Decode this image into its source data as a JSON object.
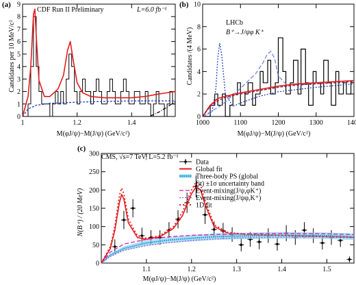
{
  "chart_data": [
    {
      "panel": "(a)",
      "type": "line",
      "annotation_left": "CDF Run II Preliminary",
      "annotation_right": "L=6.0 fb⁻¹",
      "xlabel": "M(φJ/ψ)−M(J/ψ) (GeV/c²)",
      "ylabel": "Candidates per 10 MeV/c²",
      "xlim": [
        1.0,
        1.56
      ],
      "ylim": [
        0,
        9
      ],
      "x_ticks": [
        "1",
        "1.2",
        "1.4"
      ],
      "x_tick_values": [
        1.0,
        1.2,
        1.4
      ],
      "y_ticks": [
        "0",
        "1",
        "2",
        "3",
        "4",
        "5",
        "6",
        "7",
        "8",
        "9"
      ],
      "series": [
        {
          "kind": "histogram",
          "color": "#000000",
          "edges": [
            1.0,
            1.01,
            1.02,
            1.03,
            1.04,
            1.05,
            1.06,
            1.07,
            1.08,
            1.09,
            1.1,
            1.11,
            1.12,
            1.13,
            1.14,
            1.15,
            1.16,
            1.17,
            1.18,
            1.19,
            1.2,
            1.21,
            1.22,
            1.23,
            1.24,
            1.25,
            1.26,
            1.27,
            1.28,
            1.29,
            1.3,
            1.31,
            1.32,
            1.33,
            1.34,
            1.35,
            1.36,
            1.37,
            1.38,
            1.39,
            1.4,
            1.41,
            1.42,
            1.43,
            1.44,
            1.45,
            1.46,
            1.47,
            1.48,
            1.49,
            1.5,
            1.51,
            1.52,
            1.53,
            1.54,
            1.55,
            1.56
          ],
          "values": [
            0,
            0,
            1,
            4,
            8,
            4,
            2,
            1,
            1,
            1,
            0,
            1,
            2,
            1,
            2,
            1,
            3,
            5,
            4,
            2,
            1,
            2,
            3,
            2,
            2,
            1,
            2,
            3,
            2,
            1,
            1,
            2,
            3,
            2,
            1,
            1,
            2,
            3,
            2,
            1,
            1,
            2,
            2,
            1,
            1,
            2,
            1,
            0,
            1,
            2,
            1,
            1,
            0,
            1,
            2,
            1
          ]
        },
        {
          "kind": "fit",
          "color": "#e41a1c",
          "x": [
            1.0,
            1.02,
            1.03,
            1.04,
            1.045,
            1.05,
            1.06,
            1.08,
            1.1,
            1.13,
            1.15,
            1.165,
            1.175,
            1.185,
            1.2,
            1.22,
            1.25,
            1.3,
            1.35,
            1.4,
            1.45,
            1.5,
            1.53,
            1.56
          ],
          "y": [
            0.0,
            1.6,
            4.0,
            8.2,
            8.6,
            6.5,
            2.9,
            1.6,
            1.6,
            2.2,
            3.3,
            5.3,
            6.0,
            4.6,
            2.7,
            1.9,
            1.6,
            1.5,
            1.5,
            1.5,
            1.6,
            1.8,
            1.9,
            2.0
          ]
        },
        {
          "kind": "background",
          "color": "#1f3fbf",
          "dash": "3,2",
          "x": [
            1.0,
            1.02,
            1.05,
            1.1,
            1.15,
            1.2,
            1.3,
            1.4,
            1.5,
            1.56
          ],
          "y": [
            0.0,
            0.6,
            0.9,
            1.05,
            1.1,
            1.15,
            1.2,
            1.25,
            1.25,
            1.25
          ]
        },
        {
          "kind": "other",
          "color": "#000000",
          "dash": "5,2,1,2",
          "x": [
            1.47,
            1.5,
            1.53,
            1.56
          ],
          "y": [
            0.05,
            0.35,
            0.75,
            1.2
          ]
        }
      ]
    },
    {
      "panel": "(b)",
      "type": "line",
      "annotation_line1": "LHCb",
      "annotation_line2": "B⁺→J/ψφ K⁺",
      "xlabel": "M(φJ/ψ)−M(J/ψ) (GeV/c²)",
      "ylabel": "Candidates /(4 MeV)",
      "xlim": [
        1000,
        1400
      ],
      "ylim": [
        0,
        10
      ],
      "x_ticks": [
        "1000",
        "1100",
        "1200",
        "1300",
        "1400"
      ],
      "x_tick_values": [
        1000,
        1100,
        1200,
        1300,
        1400
      ],
      "y_ticks": [
        "0",
        "2",
        "4",
        "6",
        "8",
        "10"
      ],
      "y_tick_values": [
        0,
        2,
        4,
        6,
        8,
        10
      ],
      "series": [
        {
          "kind": "histogram",
          "color": "#000000",
          "x": [
            1000,
            1012,
            1020,
            1032,
            1040,
            1052,
            1060,
            1072,
            1080,
            1092,
            1100,
            1112,
            1120,
            1132,
            1140,
            1152,
            1160,
            1172,
            1180,
            1192,
            1200,
            1212,
            1220,
            1232,
            1240,
            1252,
            1260,
            1272,
            1280,
            1292,
            1300,
            1312,
            1320,
            1332,
            1340,
            1352,
            1360,
            1372,
            1380,
            1392,
            1400
          ],
          "y": [
            0,
            0,
            1,
            2,
            1,
            2,
            0,
            1,
            2,
            3,
            1,
            2,
            3,
            1,
            2,
            4,
            3,
            5,
            2,
            3,
            7,
            4,
            2,
            3,
            5,
            2,
            6,
            3,
            1,
            4,
            3,
            2,
            5,
            3,
            1,
            4,
            2,
            3,
            2,
            3,
            1
          ]
        },
        {
          "kind": "peak_component",
          "color": "#1f3fbf",
          "dash": "2,2",
          "x": [
            1000,
            1025,
            1035,
            1040,
            1045,
            1050,
            1060,
            1080,
            1100,
            1150,
            1200,
            1300,
            1400
          ],
          "y": [
            0.0,
            0.4,
            2.5,
            5.2,
            6.5,
            5.6,
            2.0,
            0.9,
            1.2,
            1.8,
            2.2,
            2.6,
            2.9
          ]
        },
        {
          "kind": "peak_component",
          "color": "#6f86e6",
          "dash": "6,3",
          "x": [
            1000,
            1050,
            1100,
            1140,
            1160,
            1170,
            1180,
            1190,
            1200,
            1220,
            1260,
            1300,
            1400
          ],
          "y": [
            0.0,
            1.0,
            2.5,
            3.8,
            4.8,
            5.5,
            5.8,
            5.2,
            3.6,
            2.9,
            2.8,
            3.0,
            3.2
          ]
        },
        {
          "kind": "fit",
          "color": "#e41a1c",
          "x": [
            1000,
            1020,
            1040,
            1060,
            1100,
            1150,
            1200,
            1250,
            1300,
            1350,
            1400
          ],
          "y": [
            0.0,
            1.0,
            1.6,
            1.8,
            2.1,
            2.4,
            2.7,
            2.9,
            3.0,
            3.1,
            3.2
          ]
        },
        {
          "kind": "background",
          "color": "#7a1a3a",
          "dash": "4,2",
          "x": [
            1000,
            1020,
            1040,
            1060,
            1100,
            1150,
            1200,
            1250,
            1300,
            1350,
            1400
          ],
          "y": [
            0.0,
            0.9,
            1.4,
            1.7,
            2.0,
            2.3,
            2.6,
            2.8,
            2.9,
            3.0,
            3.1
          ]
        }
      ]
    },
    {
      "panel": "(c)",
      "type": "line",
      "annotation": "CMS, √s=7 TeV, L=5.2 fb⁻¹",
      "xlabel": "M(φJ/ψ)−M(J/ψ) (GeV/c²)",
      "ylabel": "N(B⁺) / (20 MeV)",
      "xlim": [
        1.0,
        1.56
      ],
      "ylim": [
        0,
        300
      ],
      "x_ticks": [
        "1.1",
        "1.2",
        "1.3",
        "1.4",
        "1.5"
      ],
      "x_tick_values": [
        1.1,
        1.2,
        1.3,
        1.4,
        1.5
      ],
      "y_ticks": [
        "0",
        "50",
        "100",
        "150",
        "200",
        "250",
        "300"
      ],
      "y_tick_values": [
        0,
        50,
        100,
        150,
        200,
        250,
        300
      ],
      "legend_placement": "top-right",
      "legend": [
        {
          "label": "Data",
          "style": "data"
        },
        {
          "label": "Global fit",
          "style": "solid-red"
        },
        {
          "label": "Three-body PS (global",
          "style": "band-blue"
        },
        {
          "label": "fit) ±1σ uncertainty band",
          "style": "none"
        },
        {
          "label": "Event-mixing(J/ψ,φK⁺)",
          "style": "dash-magenta"
        },
        {
          "label": "Event-mixing(J/ψφ,K⁺)",
          "style": "dash-violet"
        },
        {
          "label": "1D fit",
          "style": "dot-red"
        }
      ],
      "series": [
        {
          "kind": "data",
          "color": "#000000",
          "x": [
            1.03,
            1.05,
            1.07,
            1.09,
            1.11,
            1.13,
            1.15,
            1.17,
            1.19,
            1.21,
            1.23,
            1.25,
            1.27,
            1.29,
            1.31,
            1.33,
            1.35,
            1.37,
            1.39,
            1.41,
            1.43,
            1.45,
            1.47,
            1.49,
            1.51,
            1.53,
            1.55
          ],
          "y": [
            45,
            118,
            150,
            75,
            70,
            70,
            90,
            120,
            165,
            210,
            132,
            92,
            88,
            78,
            50,
            65,
            58,
            75,
            52,
            82,
            70,
            90,
            75,
            55,
            70,
            62,
            10
          ],
          "err": [
            20,
            25,
            25,
            22,
            20,
            20,
            22,
            25,
            28,
            30,
            25,
            22,
            22,
            20,
            18,
            20,
            20,
            20,
            18,
            22,
            20,
            22,
            20,
            18,
            20,
            18,
            8
          ]
        },
        {
          "kind": "fit",
          "color": "#e41a1c",
          "x": [
            1.0,
            1.02,
            1.03,
            1.04,
            1.045,
            1.05,
            1.06,
            1.08,
            1.1,
            1.13,
            1.16,
            1.18,
            1.2,
            1.21,
            1.22,
            1.23,
            1.25,
            1.28,
            1.32,
            1.4,
            1.5,
            1.56
          ],
          "y": [
            0,
            40,
            90,
            165,
            188,
            175,
            110,
            70,
            65,
            72,
            95,
            130,
            190,
            208,
            200,
            160,
            100,
            82,
            78,
            76,
            72,
            70
          ]
        },
        {
          "kind": "band",
          "color": "#29a3d6",
          "x": [
            1.0,
            1.02,
            1.05,
            1.1,
            1.15,
            1.2,
            1.25,
            1.3,
            1.4,
            1.5,
            1.56
          ],
          "y": [
            0,
            22,
            40,
            55,
            63,
            68,
            72,
            74,
            76,
            75,
            72
          ],
          "err": [
            0,
            4,
            6,
            8,
            8,
            9,
            9,
            9,
            9,
            9,
            9
          ]
        },
        {
          "kind": "mixing",
          "color": "#d61aa8",
          "dash": "6,3",
          "x": [
            1.0,
            1.02,
            1.05,
            1.1,
            1.15,
            1.2,
            1.25,
            1.3,
            1.4,
            1.5,
            1.56
          ],
          "y": [
            0,
            30,
            52,
            65,
            72,
            76,
            78,
            80,
            81,
            80,
            78
          ]
        },
        {
          "kind": "mixing",
          "color": "#8a5ad6",
          "dash": "2,2",
          "x": [
            1.0,
            1.02,
            1.05,
            1.1,
            1.15,
            1.2,
            1.25,
            1.3,
            1.4,
            1.5,
            1.56
          ],
          "y": [
            0,
            18,
            35,
            48,
            56,
            62,
            66,
            69,
            71,
            72,
            70
          ]
        },
        {
          "kind": "fit_1d",
          "color": "#e41a1c",
          "dash": "2,3",
          "x": [
            1.0,
            1.02,
            1.03,
            1.04,
            1.045,
            1.05,
            1.06,
            1.08,
            1.1,
            1.13,
            1.16,
            1.18,
            1.2,
            1.21,
            1.22,
            1.23,
            1.25,
            1.28,
            1.32,
            1.4,
            1.5,
            1.56
          ],
          "y": [
            0,
            45,
            100,
            185,
            205,
            190,
            120,
            75,
            68,
            75,
            100,
            140,
            200,
            222,
            214,
            170,
            105,
            84,
            79,
            76,
            72,
            70
          ]
        }
      ]
    }
  ]
}
